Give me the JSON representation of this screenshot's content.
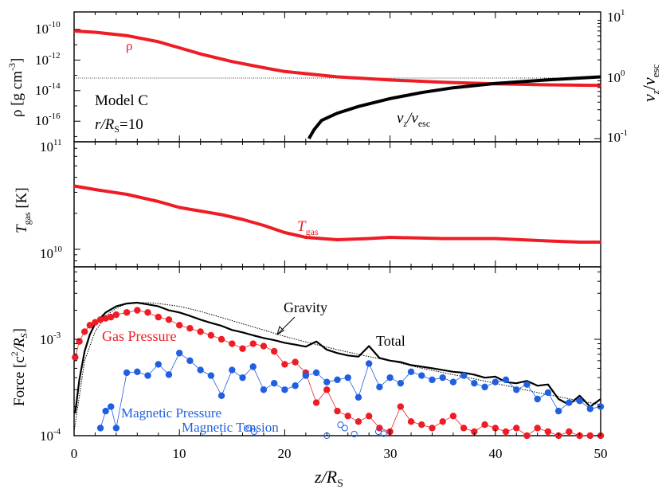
{
  "chart_data": [
    {
      "panel": "top",
      "type": "line",
      "ylabel": "ρ [g cm⁻³]",
      "y2label": "v_z/v_esc",
      "xlim": [
        0,
        50
      ],
      "ylim_log10": [
        -17.5,
        -9.5
      ],
      "y2lim_log10": [
        -1,
        1
      ],
      "yticks": [
        "10-10",
        "10-12",
        "10-14",
        "10-16",
        "1011"
      ],
      "y2ticks": [
        "101",
        "100",
        "10-1"
      ],
      "reference_line_y2": 1,
      "annotations": {
        "model": "Model C",
        "radius": "r/RS=10"
      },
      "series": [
        {
          "name": "ρ",
          "color": "#ee1c24",
          "axis": "left",
          "x": [
            0,
            2,
            5,
            8,
            10,
            12,
            15,
            18,
            20,
            25,
            30,
            35,
            40,
            45,
            50
          ],
          "log10_y": [
            -10.1,
            -10.18,
            -10.4,
            -10.8,
            -11.2,
            -11.6,
            -12.1,
            -12.5,
            -12.75,
            -13.1,
            -13.3,
            -13.45,
            -13.55,
            -13.62,
            -13.66
          ]
        },
        {
          "name": "v_z/v_esc",
          "color": "#000000",
          "axis": "right",
          "x": [
            22.3,
            22.8,
            23.5,
            25,
            27,
            30,
            33,
            36,
            40,
            45,
            50
          ],
          "log10_y": [
            -1.0,
            -0.85,
            -0.7,
            -0.58,
            -0.47,
            -0.34,
            -0.24,
            -0.16,
            -0.09,
            -0.03,
            0.02
          ]
        }
      ]
    },
    {
      "panel": "middle",
      "type": "line",
      "ylabel": "Tgas [K]",
      "xlim": [
        0,
        50
      ],
      "yticks": [
        "1010"
      ],
      "series": [
        {
          "name": "Tgas",
          "color": "#ee1c24",
          "x": [
            0,
            2,
            5,
            8,
            10,
            12,
            14,
            16,
            18,
            20,
            22,
            25,
            28,
            30,
            35,
            40,
            45,
            48,
            50
          ],
          "log10_y": [
            10.53,
            10.5,
            10.46,
            10.4,
            10.35,
            10.32,
            10.29,
            10.25,
            10.2,
            10.14,
            10.1,
            10.08,
            10.09,
            10.1,
            10.09,
            10.09,
            10.07,
            10.06,
            10.06
          ]
        }
      ]
    },
    {
      "panel": "bottom",
      "type": "line",
      "xlabel": "z/RS",
      "ylabel": "Force [c²/RS]",
      "xlim": [
        0,
        50
      ],
      "xticks": [
        0,
        10,
        20,
        30,
        40,
        50
      ],
      "ylim_log10": [
        -4,
        -2.4
      ],
      "yticks": [
        "10-3",
        "10-4"
      ],
      "series": [
        {
          "name": "Total",
          "color": "#000000",
          "x": [
            0.1,
            0.5,
            1,
            1.5,
            2,
            3,
            4,
            5,
            6,
            7,
            8,
            9,
            10,
            11,
            12,
            13,
            14,
            15,
            16,
            17,
            18,
            19,
            20,
            21,
            22,
            23,
            24,
            25,
            26,
            27,
            28,
            29,
            30,
            31,
            32,
            33,
            34,
            35,
            36,
            37,
            38,
            39,
            40,
            41,
            42,
            43,
            44,
            45,
            46,
            47,
            48,
            49,
            50
          ],
          "y": [
            0.00017,
            0.00038,
            0.00075,
            0.00112,
            0.00145,
            0.0019,
            0.0022,
            0.00235,
            0.0024,
            0.0023,
            0.0022,
            0.002,
            0.0019,
            0.00175,
            0.0016,
            0.00148,
            0.00138,
            0.00125,
            0.00118,
            0.0011,
            0.00103,
            0.00098,
            0.00092,
            0.00088,
            0.00084,
            0.00095,
            0.00078,
            0.00072,
            0.00068,
            0.00066,
            0.00085,
            0.00064,
            0.0006,
            0.00058,
            0.00054,
            0.00052,
            0.0005,
            0.00048,
            0.00046,
            0.00045,
            0.00043,
            0.0004,
            0.00041,
            0.00036,
            0.00035,
            0.00037,
            0.00033,
            0.00034,
            0.00024,
            0.00021,
            0.00026,
            0.0002,
            0.00024
          ]
        },
        {
          "name": "Gravity",
          "color": "#000000",
          "x": [
            0,
            1,
            2,
            3,
            4,
            5,
            6,
            7,
            8,
            10,
            12,
            14,
            16,
            18,
            20,
            22,
            25,
            28,
            30,
            33,
            36,
            40,
            44,
            48,
            50
          ],
          "y": [
            0.00011,
            0.0006,
            0.0012,
            0.00175,
            0.0021,
            0.00235,
            0.0024,
            0.0024,
            0.00235,
            0.0022,
            0.00195,
            0.00168,
            0.00145,
            0.00125,
            0.00107,
            0.00094,
            0.00078,
            0.00066,
            0.0006,
            0.0005,
            0.00043,
            0.00035,
            0.00028,
            0.00023,
            0.00021
          ]
        },
        {
          "name": "Gas Pressure",
          "color": "#ee1c24",
          "x": [
            0.1,
            0.5,
            1,
            1.5,
            2,
            2.5,
            3,
            3.5,
            4,
            5,
            6,
            7,
            8,
            9,
            10,
            11,
            12,
            13,
            14,
            15,
            16,
            17,
            18,
            19,
            20,
            21,
            22,
            23,
            24,
            25,
            26,
            27,
            28,
            29,
            30,
            31,
            32,
            33,
            34,
            35,
            36,
            37,
            38,
            39,
            40,
            41,
            42,
            43,
            44,
            45,
            46,
            47,
            48,
            49,
            50
          ],
          "y": [
            0.00065,
            0.00095,
            0.0012,
            0.0014,
            0.0015,
            0.0016,
            0.00165,
            0.0017,
            0.0018,
            0.0019,
            0.002,
            0.0019,
            0.0017,
            0.0016,
            0.0014,
            0.0013,
            0.0012,
            0.0011,
            0.001,
            0.0009,
            0.0008,
            0.0009,
            0.00085,
            0.00075,
            0.00055,
            0.00058,
            0.00045,
            0.00022,
            0.0003,
            0.00018,
            0.00016,
            0.00014,
            0.00016,
            0.00012,
            0.00011,
            0.0002,
            0.00014,
            0.00013,
            0.00012,
            0.00014,
            0.00016,
            0.00012,
            0.00011,
            0.00013,
            0.00012,
            0.00011,
            0.00012,
            0.0001,
            0.00012,
            0.00011,
            0.0001,
            0.00011,
            0.0001,
            0.0001,
            0.0001
          ]
        },
        {
          "name": "Magnetic Pressure",
          "color": "#1f5fe0",
          "x": [
            2.5,
            3,
            3.5,
            4,
            5,
            6,
            7,
            8,
            9,
            10,
            11,
            12,
            13,
            14,
            15,
            16,
            17,
            18,
            19,
            20,
            21,
            22,
            23,
            24,
            25,
            26,
            27,
            28,
            29,
            30,
            31,
            32,
            33,
            34,
            35,
            36,
            37,
            38,
            39,
            40,
            41,
            42,
            43,
            44,
            45,
            46,
            47,
            48,
            49,
            50
          ],
          "y": [
            0.00012,
            0.00018,
            0.0002,
            0.00012,
            0.00045,
            0.00046,
            0.00042,
            0.00055,
            0.00043,
            0.00072,
            0.0006,
            0.00048,
            0.00042,
            0.00026,
            0.00048,
            0.0004,
            0.00052,
            0.0003,
            0.00035,
            0.0003,
            0.00033,
            0.00042,
            0.00045,
            0.00036,
            0.00038,
            0.0004,
            0.00025,
            0.00056,
            0.00032,
            0.0004,
            0.00035,
            0.00046,
            0.00042,
            0.00038,
            0.0004,
            0.00036,
            0.00042,
            0.00035,
            0.00032,
            0.00036,
            0.00038,
            0.0003,
            0.00034,
            0.00024,
            0.00028,
            0.00018,
            0.00022,
            0.00023,
            0.00019,
            0.0002
          ]
        },
        {
          "name": "Magnetic Tension",
          "color": "#1f5fe0",
          "marker": "open-circle",
          "x": [
            16.6,
            17.1,
            24.0,
            25.3,
            25.7,
            26.6,
            28.9,
            29.4
          ],
          "y": [
            0.00012,
            0.00011,
            0.0001,
            0.00013,
            0.00012,
            0.000104,
            0.00011,
            0.000105
          ]
        }
      ],
      "annotations": [
        "Gravity",
        "Total",
        "Gas Pressure",
        "Magnetic Pressure",
        "Magnetic Tension"
      ]
    }
  ],
  "labels": {
    "top_ylabel_rho": "ρ",
    "top_ylabel_unit": "[g cm",
    "top_ylabel_exp": "-3",
    "top_ylabel_close": "]",
    "y2label_v": "v",
    "y2label_z": "z",
    "y2label_slash": "/",
    "y2label_v2": "v",
    "y2label_esc": "esc",
    "rho_label": "ρ",
    "vz_label_v": "v",
    "vz_label_z": "z",
    "vz_label_slash": "/v",
    "vz_label_esc": "esc",
    "model": "Model C",
    "radius_r": "r",
    "radius_slash": "/R",
    "radius_S": "S",
    "radius_eq": "=10",
    "mid_ylabel_T": "T",
    "mid_ylabel_gas": "gas",
    "mid_ylabel_unit": " [K]",
    "tgas_T": "T",
    "tgas_gas": "gas",
    "force_ylabel_a": "Force [c",
    "force_ylabel_2": "2",
    "force_ylabel_b": "/R",
    "force_ylabel_S": "S",
    "force_ylabel_c": "]",
    "gravity": "Gravity",
    "total": "Total",
    "gas_pressure": "Gas Pressure",
    "magnetic_pressure": "Magnetic Pressure",
    "magnetic_tension": "Magnetic Tension",
    "xlabel_z": "z",
    "xlabel_R": "/R",
    "xlabel_S": "S",
    "ten": "10",
    "exp_m10": "-10",
    "exp_m12": "-12",
    "exp_m14": "-14",
    "exp_m16": "-16",
    "exp_11": "11",
    "exp_1": "1",
    "exp_0": "0",
    "exp_m1": "-1",
    "exp_10": "10",
    "exp_m3": "-3",
    "exp_m4": "-4",
    "xt0": "0",
    "xt10": "10",
    "xt20": "20",
    "xt30": "30",
    "xt40": "40",
    "xt50": "50"
  }
}
